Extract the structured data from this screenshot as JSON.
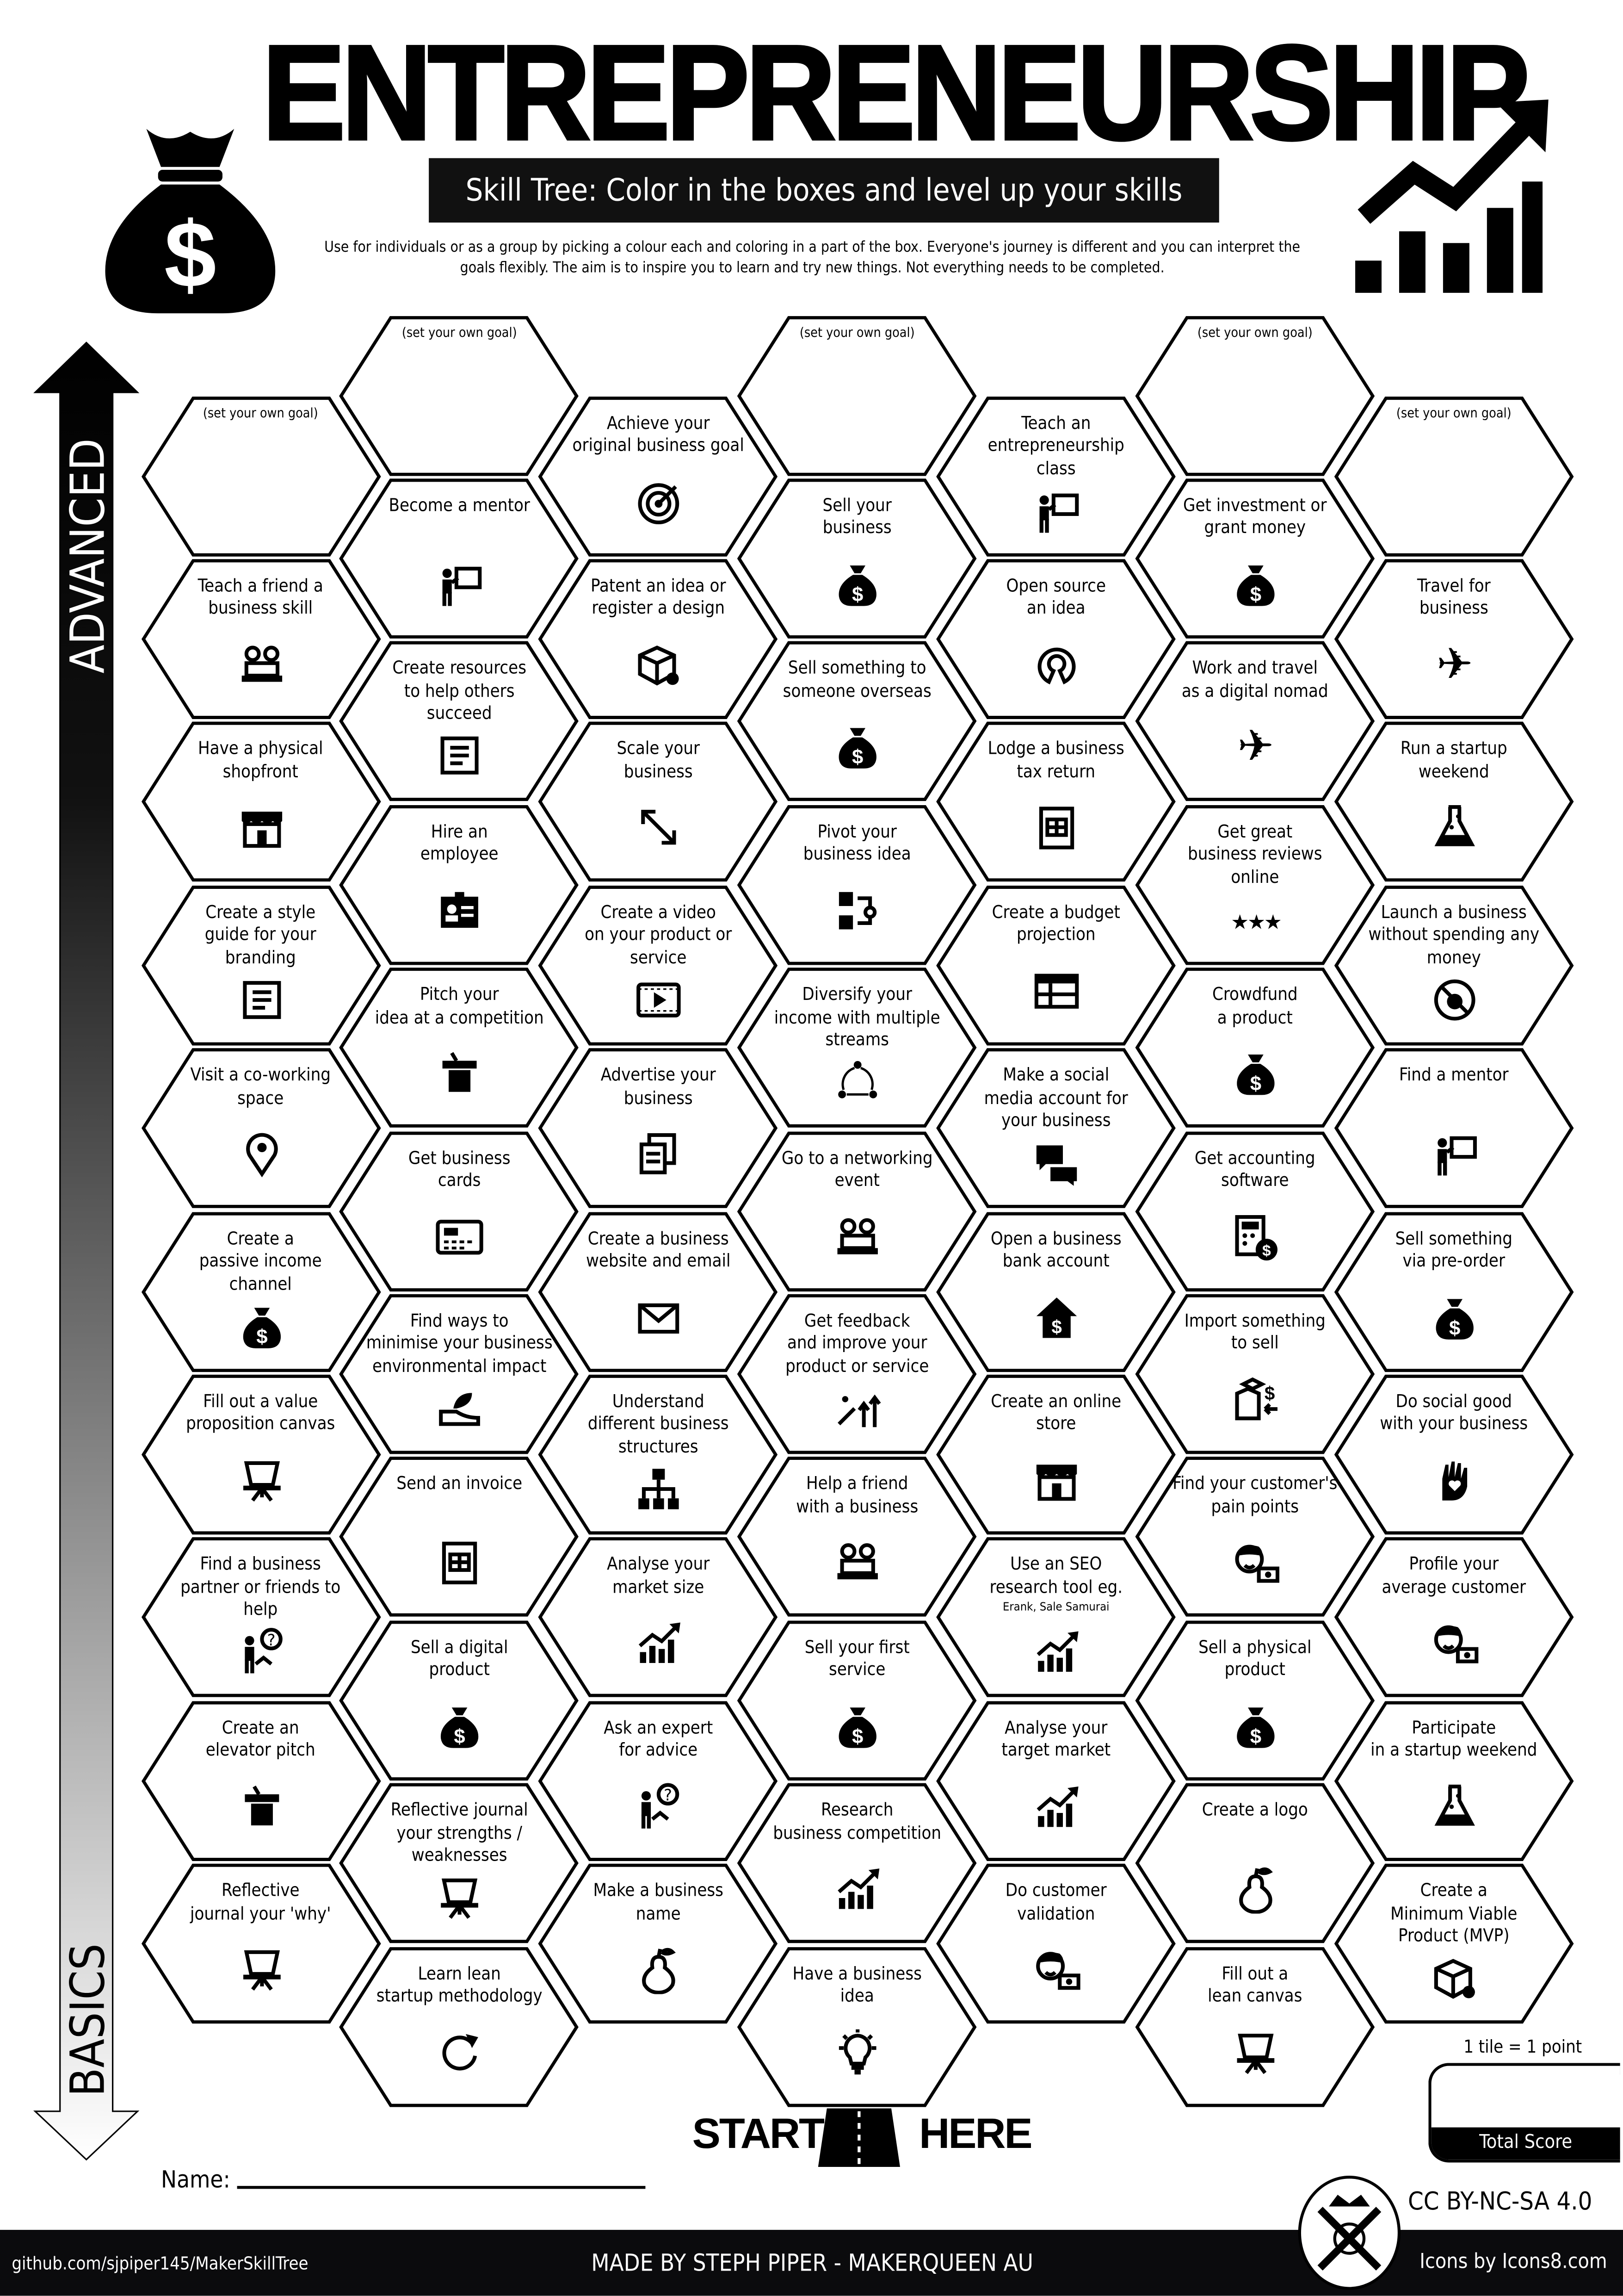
{
  "header": {
    "title": "ENTREPRENEURSHIP",
    "subtitle": "Skill Tree:  Color in the boxes and level up your skills",
    "intro": "Use for individuals or as a group by picking a colour each and coloring in a part of the box.  Everyone's journey is different and you can interpret the goals flexibly.  The aim is to inspire you to learn and try new things. Not everything needs to be completed.",
    "left_icon": "money-bag-icon",
    "right_icon": "growth-chart-icon"
  },
  "axis": {
    "top_label": "ADVANCED",
    "bottom_label": "BASICS"
  },
  "columns": [
    [
      {
        "label": "(set your own goal)",
        "goal": true
      },
      {
        "label": "Teach a friend a\nbusiness skill",
        "icon": "meeting"
      },
      {
        "label": "Have a physical\nshopfront",
        "icon": "shop"
      },
      {
        "label": "Create a style\nguide for your\nbranding",
        "icon": "document"
      },
      {
        "label": "Visit a co-working\nspace",
        "icon": "location-pin"
      },
      {
        "label": "Create a\npassive income\nchannel",
        "icon": "money-bag"
      },
      {
        "label": "Fill out a value\nproposition canvas",
        "icon": "easel"
      },
      {
        "label": "Find a business\npartner or friends to\nhelp",
        "icon": "question-person"
      },
      {
        "label": "Create an\nelevator pitch",
        "icon": "podium"
      },
      {
        "label": "Reflective\njournal your 'why'",
        "icon": "easel"
      }
    ],
    [
      {
        "label": "(set your own goal)",
        "goal": true
      },
      {
        "label": "Become a mentor",
        "icon": "mentor"
      },
      {
        "label": "Create resources\nto help others\nsucceed",
        "icon": "document"
      },
      {
        "label": "Hire an\nemployee",
        "icon": "id-card"
      },
      {
        "label": "Pitch your\nidea at a competition",
        "icon": "podium"
      },
      {
        "label": "Get business\ncards",
        "icon": "business-card"
      },
      {
        "label": "Find ways to\nminimise your business\nenvironmental impact",
        "icon": "eco-shoe"
      },
      {
        "label": "Send an invoice",
        "icon": "invoice"
      },
      {
        "label": "Sell a digital\nproduct",
        "icon": "money-bag"
      },
      {
        "label": "Reflective journal\nyour strengths /\nweaknesses",
        "icon": "easel"
      },
      {
        "label": "Learn lean\nstartup methodology",
        "icon": "restart"
      }
    ],
    [
      {
        "label": "Achieve your\noriginal business goal",
        "icon": "target"
      },
      {
        "label": "Patent an idea or\nregister a design",
        "icon": "package-badge"
      },
      {
        "label": "Scale your\nbusiness",
        "icon": "resize-diagonal"
      },
      {
        "label": "Create a video\non your product or\nservice",
        "icon": "video"
      },
      {
        "label": "Advertise your\nbusiness",
        "icon": "copy"
      },
      {
        "label": "Create a business\nwebsite and email",
        "icon": "envelope"
      },
      {
        "label": "Understand\ndifferent business\nstructures",
        "icon": "org-chart"
      },
      {
        "label": "Analyse your\nmarket size",
        "icon": "bar-growth"
      },
      {
        "label": "Ask an expert\nfor advice",
        "icon": "question-person"
      },
      {
        "label": "Make a business\nname",
        "icon": "pear"
      }
    ],
    [
      {
        "label": "(set your own goal)",
        "goal": true
      },
      {
        "label": "Sell your\nbusiness",
        "icon": "money-bag"
      },
      {
        "label": "Sell something to\nsomeone overseas",
        "icon": "money-bag"
      },
      {
        "label": "Pivot your\nbusiness idea",
        "icon": "pivot"
      },
      {
        "label": "Diversify your\nincome with multiple\nstreams",
        "icon": "diversify"
      },
      {
        "label": "Go to a networking\nevent",
        "icon": "meeting"
      },
      {
        "label": "Get feedback\nand improve your\nproduct or service",
        "icon": "improve"
      },
      {
        "label": "Help a friend\nwith a business",
        "icon": "meeting"
      },
      {
        "label": "Sell your first\nservice",
        "icon": "money-bag"
      },
      {
        "label": "Research\nbusiness competition",
        "icon": "bar-growth"
      },
      {
        "label": "Have a business\nidea",
        "icon": "lightbulb"
      }
    ],
    [
      {
        "label": "Teach an\nentrepreneurship\nclass",
        "icon": "mentor"
      },
      {
        "label": "Open source\nan idea",
        "icon": "open-source"
      },
      {
        "label": "Lodge a business\ntax return",
        "icon": "invoice"
      },
      {
        "label": "Create a budget\nprojection",
        "icon": "table"
      },
      {
        "label": "Make a social\nmedia account for\nyour business",
        "icon": "chat"
      },
      {
        "label": "Open a business\nbank account",
        "icon": "bank"
      },
      {
        "label": "Create an online\nstore",
        "icon": "shop"
      },
      {
        "label": "Use an SEO\nresearch tool eg.",
        "note": "Erank, Sale Samurai",
        "icon": "bar-growth"
      },
      {
        "label": "Analyse your\ntarget market",
        "icon": "bar-growth"
      },
      {
        "label": "Do customer\nvalidation",
        "icon": "customer"
      }
    ],
    [
      {
        "label": "(set your own goal)",
        "goal": true
      },
      {
        "label": "Get investment or\ngrant money",
        "icon": "money-bag"
      },
      {
        "label": "Work and travel\nas a digital nomad",
        "icon": "airplane"
      },
      {
        "label": "Get great\nbusiness reviews\nonline",
        "icon": "stars"
      },
      {
        "label": "Crowdfund\na product",
        "icon": "money-bag"
      },
      {
        "label": "Get accounting\nsoftware",
        "icon": "calculator"
      },
      {
        "label": "Import something\nto sell",
        "icon": "boxes"
      },
      {
        "label": "Find your customer's\npain points",
        "icon": "customer"
      },
      {
        "label": "Sell a physical\nproduct",
        "icon": "money-bag"
      },
      {
        "label": "Create a logo",
        "icon": "pear"
      },
      {
        "label": "Fill out a\nlean canvas",
        "icon": "easel"
      }
    ],
    [
      {
        "label": "(set your own goal)",
        "goal": true
      },
      {
        "label": "Travel for\nbusiness",
        "icon": "airplane"
      },
      {
        "label": "Run a startup\nweekend",
        "icon": "flask"
      },
      {
        "label": "Launch a business\nwithout spending any\nmoney",
        "icon": "no-money"
      },
      {
        "label": "Find a mentor",
        "icon": "mentor"
      },
      {
        "label": "Sell something\nvia pre-order",
        "icon": "money-bag"
      },
      {
        "label": "Do social good\nwith your business",
        "icon": "hand-heart"
      },
      {
        "label": "Profile your\naverage customer",
        "icon": "customer"
      },
      {
        "label": "Participate\nin a startup weekend",
        "icon": "flask"
      },
      {
        "label": "Create a\nMinimum Viable\nProduct (MVP)",
        "icon": "package-badge"
      }
    ]
  ],
  "start": {
    "left": "START",
    "right": "HERE",
    "icon": "road-icon"
  },
  "name_label": "Name:",
  "score": {
    "note": "1 tile = 1 point",
    "label": "Total Score"
  },
  "license": "CC BY-NC-SA 4.0",
  "footer": {
    "github": "github.com/sjpiper145/MakerSkillTree",
    "made_by": "MADE BY STEPH PIPER  -  MAKERQUEEN AU",
    "icons_credit": "Icons by Icons8.com",
    "logo_icon": "makerqueen-logo-icon"
  }
}
